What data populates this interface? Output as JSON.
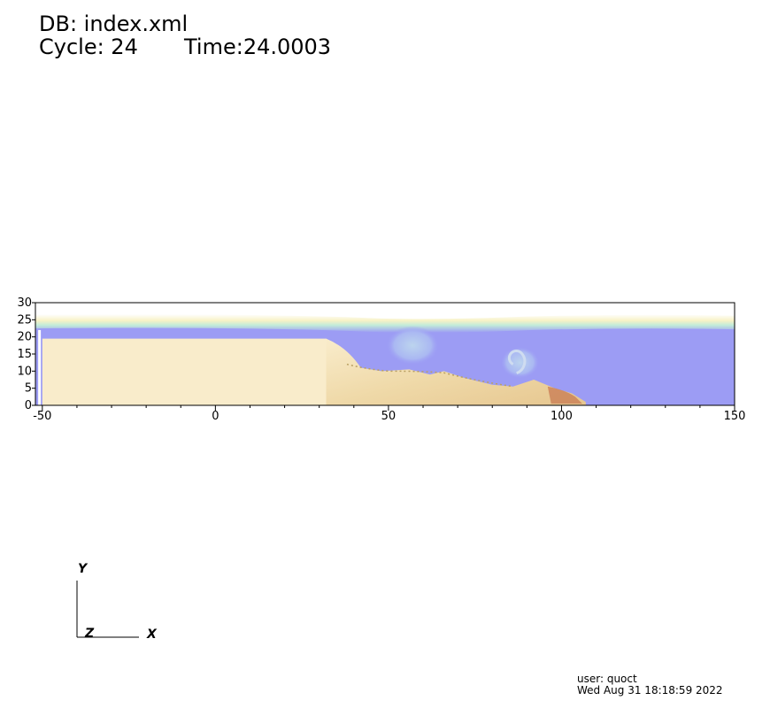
{
  "header": {
    "db_label": "DB: index.xml",
    "cycle_label": "Cycle: 24",
    "time_label": "Time:24.0003"
  },
  "chart_data": {
    "type": "heatmap",
    "xlim": [
      -52,
      150
    ],
    "ylim": [
      0,
      30
    ],
    "x_ticks": [
      -50,
      0,
      50,
      100,
      150
    ],
    "y_ticks": [
      0,
      5,
      10,
      15,
      20,
      25,
      30
    ],
    "x_tick_labels": [
      "-50",
      "0",
      "50",
      "100",
      "150"
    ],
    "y_tick_labels": [
      "0",
      "5",
      "10",
      "15",
      "20",
      "25",
      "30"
    ],
    "water_surface_y": 25,
    "sediment_block": {
      "x_start": -50,
      "x_end": 32,
      "top_y": 19.5
    },
    "colors": {
      "water": "#9c9cf4",
      "sediment": "#f9eccb",
      "deposit": "#c87a52",
      "surface": "#f4f5c8",
      "vortex": "#b6c6f2"
    }
  },
  "triad": {
    "y_label": "Y",
    "z_label": "Z",
    "x_label": "X"
  },
  "footer": {
    "user": "user: quoct",
    "date": "Wed Aug 31 18:18:59 2022"
  }
}
